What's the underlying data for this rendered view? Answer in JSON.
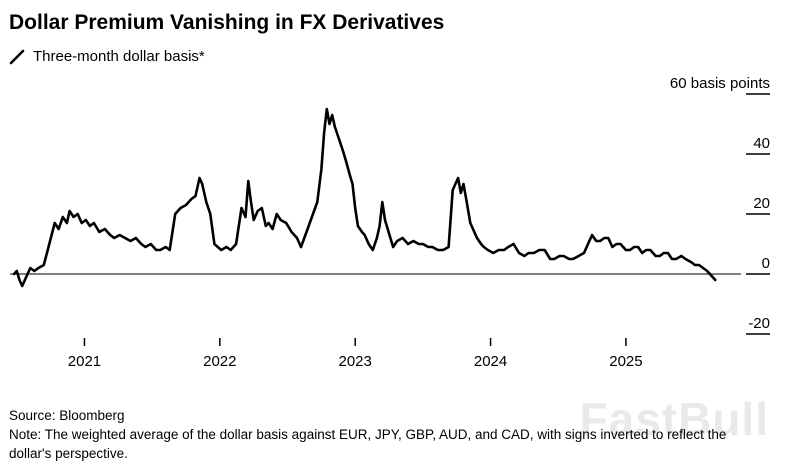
{
  "header": {
    "title": "Dollar Premium Vanishing in FX Derivatives"
  },
  "legend": {
    "label": "Three-month dollar basis*"
  },
  "footer": {
    "source": "Source: Bloomberg",
    "note": "Note: The weighted average of the dollar basis against EUR, JPY, GBP, AUD, and CAD, with signs inverted to reflect the dollar's perspective."
  },
  "watermark": {
    "text": "FastBull"
  },
  "colors": {
    "line": "#000000",
    "axis": "#000000",
    "watermark": "#e9e9e9",
    "background": "#ffffff"
  },
  "chart_data": {
    "type": "line",
    "title": "Dollar Premium Vanishing in FX Derivatives",
    "series_name": "Three-month dollar basis*",
    "unit": "basis points",
    "grid": false,
    "legend_position": "top-left",
    "x_range": [
      2020.45,
      2025.85
    ],
    "ylim": [
      -25,
      62
    ],
    "y_ticks": [
      {
        "value": 60,
        "label": "60 basis points"
      },
      {
        "value": 40,
        "label": "40"
      },
      {
        "value": 20,
        "label": "20"
      },
      {
        "value": 0,
        "label": "0"
      },
      {
        "value": -20,
        "label": "-20"
      }
    ],
    "x_ticks": [
      {
        "value": 2021,
        "label": "2021"
      },
      {
        "value": 2022,
        "label": "2022"
      },
      {
        "value": 2023,
        "label": "2023"
      },
      {
        "value": 2024,
        "label": "2024"
      },
      {
        "value": 2025,
        "label": "2025"
      }
    ],
    "x": [
      2020.48,
      2020.5,
      2020.52,
      2020.54,
      2020.57,
      2020.6,
      2020.63,
      2020.66,
      2020.7,
      2020.74,
      2020.78,
      2020.81,
      2020.84,
      2020.87,
      2020.89,
      2020.92,
      2020.95,
      2020.98,
      2021.01,
      2021.04,
      2021.07,
      2021.11,
      2021.15,
      2021.19,
      2021.22,
      2021.26,
      2021.3,
      2021.34,
      2021.38,
      2021.42,
      2021.45,
      2021.49,
      2021.53,
      2021.56,
      2021.6,
      2021.63,
      2021.67,
      2021.71,
      2021.75,
      2021.79,
      2021.82,
      2021.85,
      2021.87,
      2021.9,
      2021.93,
      2021.96,
      2022.01,
      2022.05,
      2022.08,
      2022.12,
      2022.16,
      2022.19,
      2022.21,
      2022.23,
      2022.25,
      2022.28,
      2022.31,
      2022.34,
      2022.36,
      2022.39,
      2022.42,
      2022.45,
      2022.49,
      2022.53,
      2022.57,
      2022.6,
      2022.64,
      2022.68,
      2022.72,
      2022.75,
      2022.77,
      2022.79,
      2022.81,
      2022.83,
      2022.85,
      2022.88,
      2022.91,
      2022.93,
      2022.96,
      2022.98,
      2023.0,
      2023.02,
      2023.05,
      2023.07,
      2023.1,
      2023.13,
      2023.16,
      2023.18,
      2023.2,
      2023.22,
      2023.24,
      2023.28,
      2023.31,
      2023.35,
      2023.39,
      2023.43,
      2023.47,
      2023.5,
      2023.54,
      2023.57,
      2023.61,
      2023.65,
      2023.69,
      2023.72,
      2023.74,
      2023.76,
      2023.78,
      2023.8,
      2023.82,
      2023.85,
      2023.88,
      2023.9,
      2023.93,
      2023.95,
      2023.98,
      2024.02,
      2024.06,
      2024.1,
      2024.13,
      2024.17,
      2024.21,
      2024.25,
      2024.28,
      2024.32,
      2024.36,
      2024.4,
      2024.44,
      2024.47,
      2024.51,
      2024.54,
      2024.58,
      2024.61,
      2024.65,
      2024.69,
      2024.72,
      2024.75,
      2024.78,
      2024.81,
      2024.84,
      2024.87,
      2024.9,
      2024.93,
      2024.96,
      2025.0,
      2025.03,
      2025.06,
      2025.09,
      2025.12,
      2025.15,
      2025.18,
      2025.22,
      2025.25,
      2025.28,
      2025.31,
      2025.34,
      2025.37,
      2025.41,
      2025.44,
      2025.48,
      2025.51,
      2025.54,
      2025.57,
      2025.6,
      2025.62,
      2025.64,
      2025.66
    ],
    "y": [
      0,
      1,
      -2,
      -4,
      -1,
      2,
      1,
      2,
      3,
      10,
      17,
      15,
      19,
      17,
      21,
      19,
      20,
      17,
      18,
      16,
      17,
      14,
      15,
      13,
      12,
      13,
      12,
      11,
      12,
      10,
      9,
      10,
      8,
      8,
      9,
      8,
      20,
      22,
      23,
      25,
      26,
      32,
      30,
      24,
      20,
      10,
      8,
      9,
      8,
      10,
      22,
      19,
      31,
      24,
      18,
      21,
      22,
      16,
      17,
      15,
      20,
      18,
      17,
      14,
      12,
      9,
      14,
      19,
      24,
      35,
      47,
      55,
      50,
      53,
      49,
      45,
      41,
      38,
      33,
      30,
      22,
      16,
      14,
      13,
      10,
      8,
      12,
      16,
      24,
      18,
      15,
      9,
      11,
      12,
      10,
      11,
      10,
      10,
      9,
      9,
      8,
      8,
      9,
      28,
      30,
      32,
      27,
      30,
      25,
      17,
      14,
      12,
      10,
      9,
      8,
      7,
      8,
      8,
      9,
      10,
      7,
      6,
      7,
      7,
      8,
      8,
      5,
      5,
      6,
      6,
      5,
      5,
      6,
      7,
      10,
      13,
      11,
      11,
      12,
      12,
      9,
      10,
      10,
      8,
      8,
      9,
      9,
      7,
      8,
      8,
      6,
      6,
      7,
      7,
      5,
      5,
      6,
      5,
      4,
      3,
      3,
      2,
      1,
      0,
      -1,
      -2
    ]
  }
}
